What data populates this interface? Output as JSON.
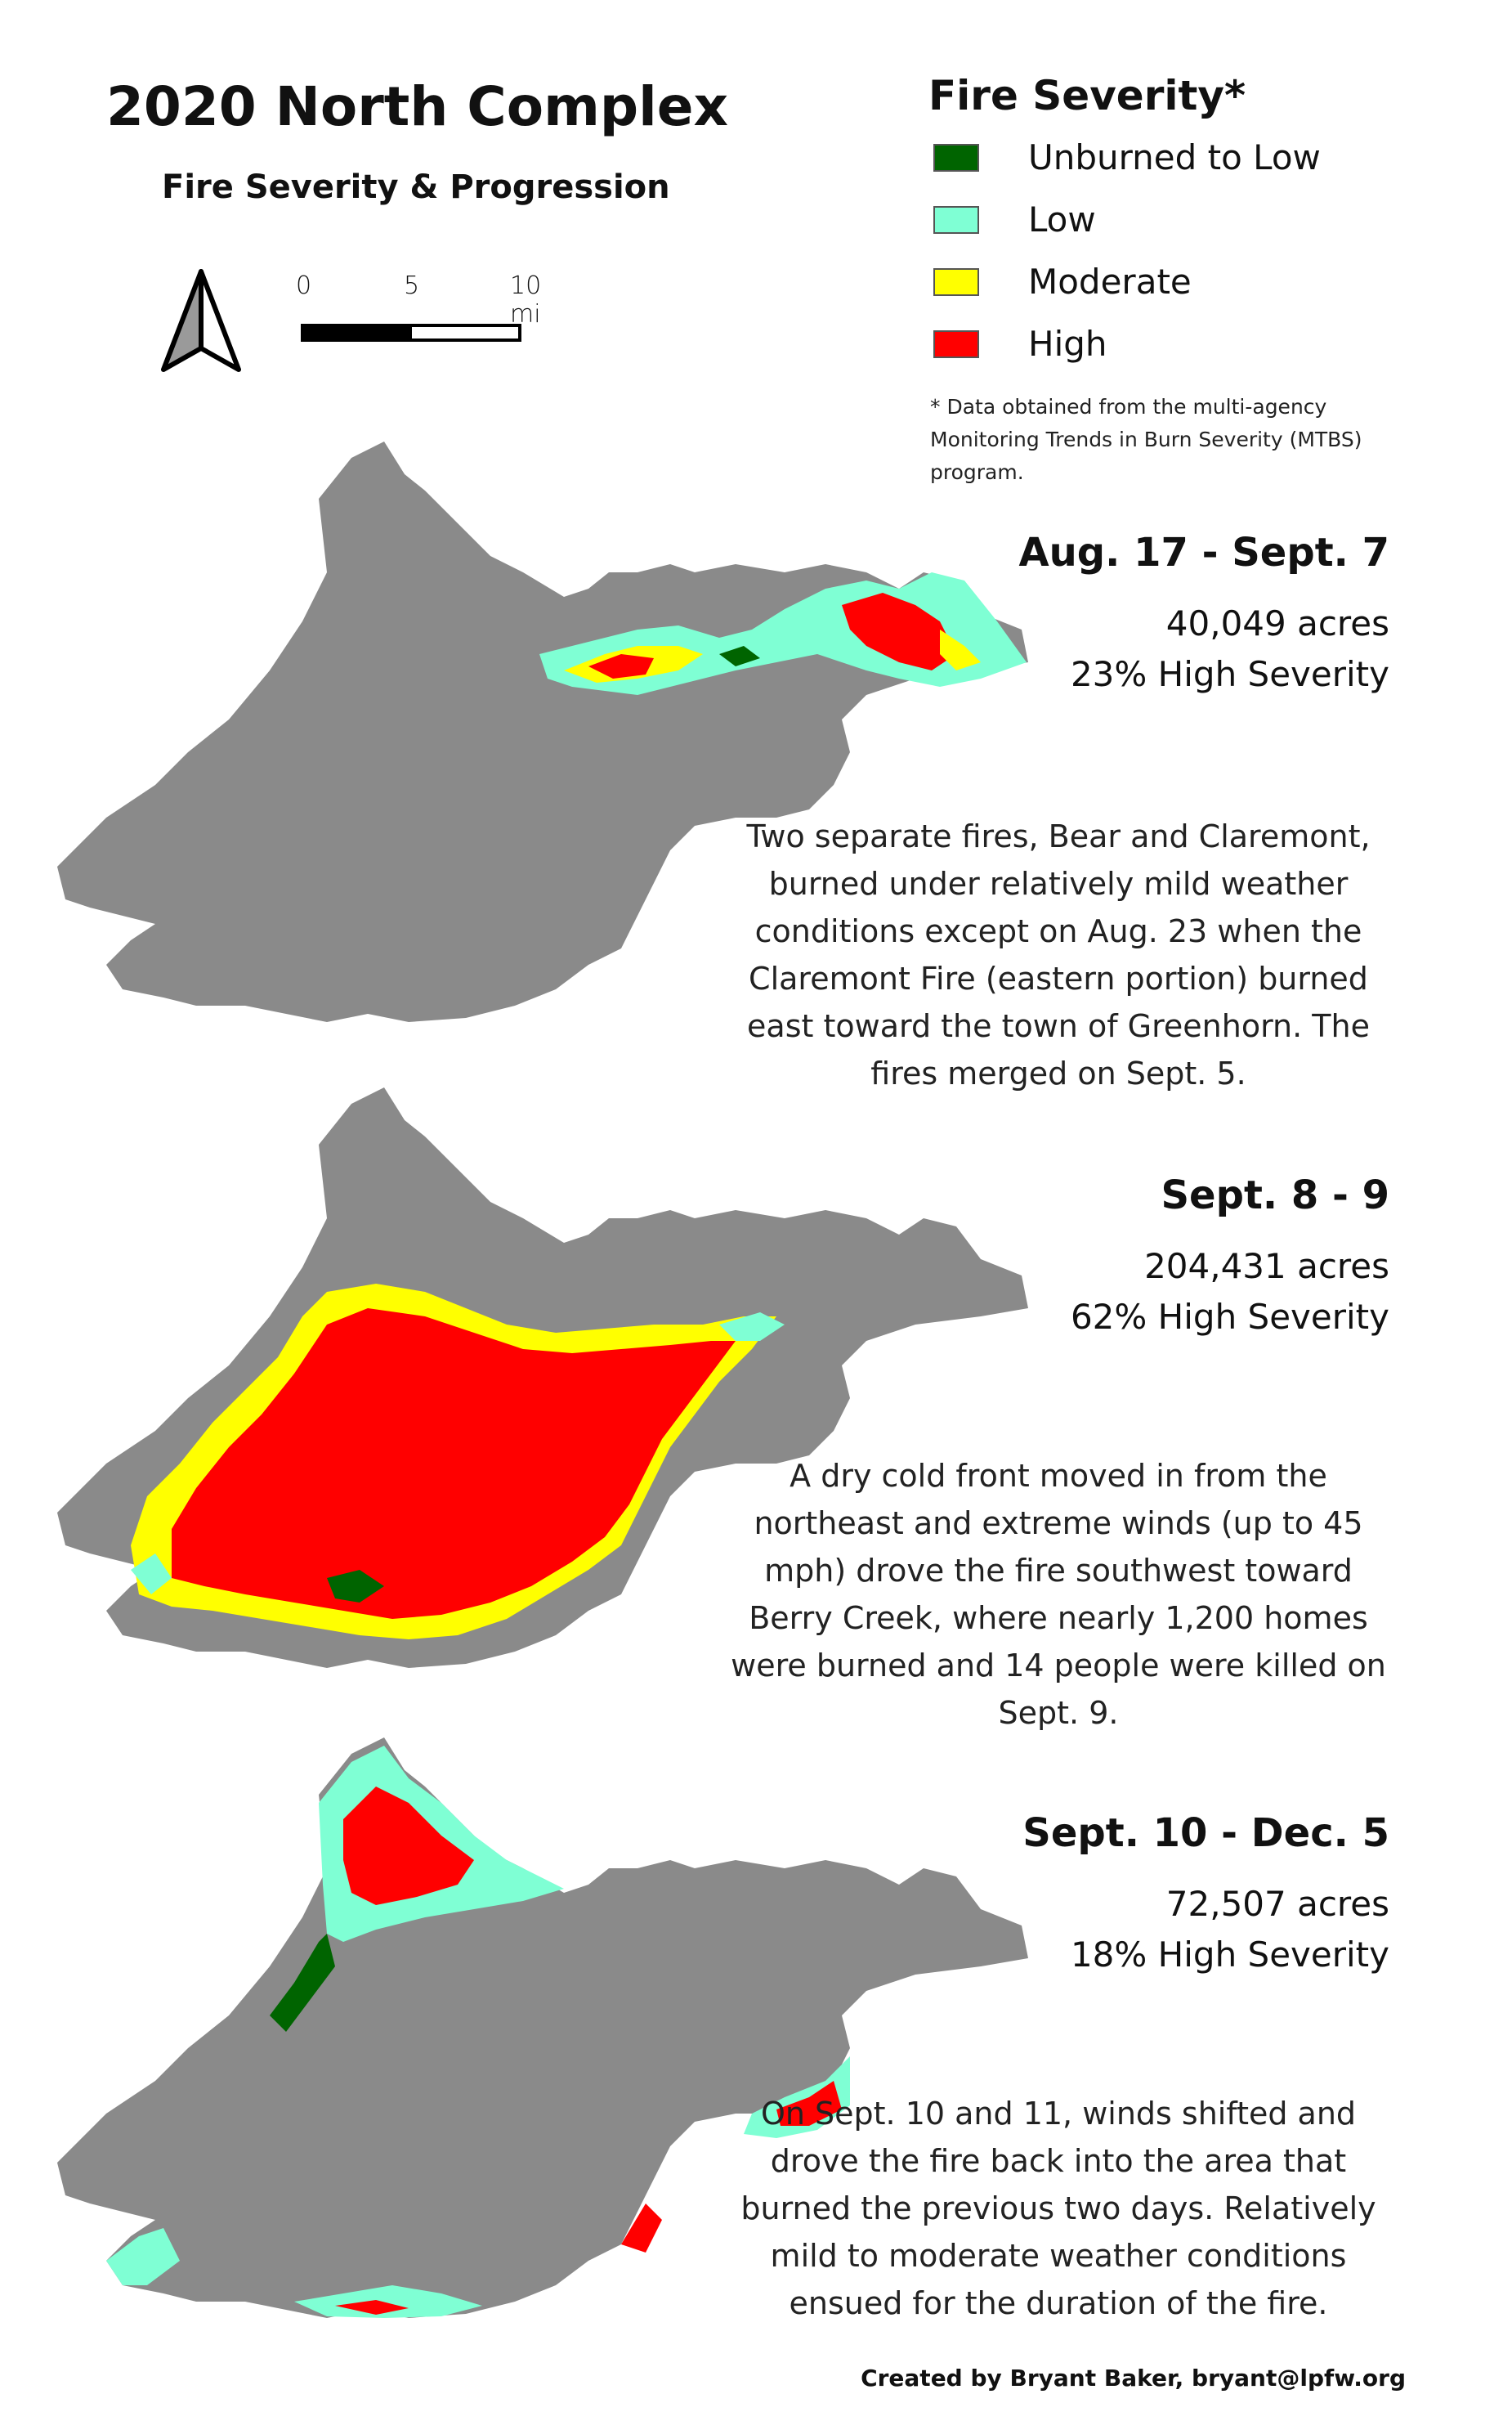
{
  "title": "2020 North Complex",
  "subtitle": "Fire Severity & Progression",
  "scale_bar": {
    "labels": [
      "0",
      "5",
      "10 mi"
    ]
  },
  "legend": {
    "title": "Fire Severity*",
    "items": [
      {
        "label": "Unburned to Low",
        "color": "#006400"
      },
      {
        "label": "Low",
        "color": "#7fffd4"
      },
      {
        "label": "Moderate",
        "color": "#ffff00"
      },
      {
        "label": "High",
        "color": "#ff0000"
      }
    ],
    "note": "* Data obtained from the multi-agency Monitoring Trends in Burn Severity (MTBS) program."
  },
  "panels": [
    {
      "title": "Aug. 17 - Sept. 7",
      "acres": "40,049 acres",
      "severity": "23% High Severity",
      "description": "Two separate fires, Bear and Claremont, burned under relatively mild weather conditions except on Aug. 23 when the Claremont Fire (eastern portion) burned east toward the town of Greenhorn. The fires merged on Sept. 5."
    },
    {
      "title": "Sept. 8 - 9",
      "acres": "204,431 acres",
      "severity": "62% High Severity",
      "description": "A dry cold front moved in from the northeast and extreme winds (up to 45 mph) drove the fire southwest toward Berry Creek, where nearly 1,200 homes were burned and 14 people were killed on Sept. 9."
    },
    {
      "title": "Sept. 10 - Dec. 5",
      "acres": "72,507 acres",
      "severity": "18% High Severity",
      "description": "On Sept. 10 and 11, winds shifted and drove the fire back into the area that burned the previous two days.  Relatively mild to moderate weather conditions ensued for the duration of the fire."
    }
  ],
  "colors": {
    "perimeter": "#8a8a8a",
    "background": "#ffffff"
  },
  "credit": "Created by Bryant Baker, bryant@lpfw.org"
}
